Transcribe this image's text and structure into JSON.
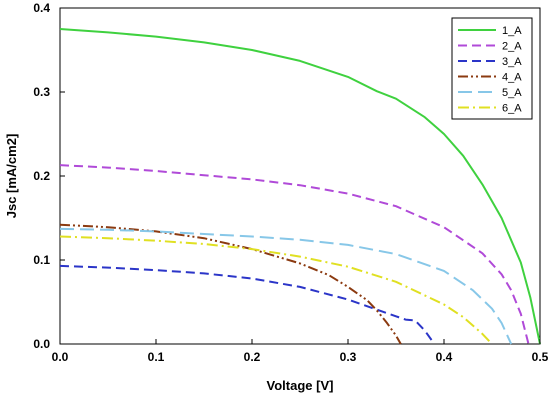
{
  "chart_data": {
    "type": "line",
    "title": "",
    "xlabel": "Voltage [V]",
    "ylabel": "Jsc [mA/cm2]",
    "xlim": [
      0.0,
      0.5
    ],
    "ylim": [
      0.0,
      0.4
    ],
    "xticks": [
      "0.0",
      "0.1",
      "0.2",
      "0.3",
      "0.4",
      "0.5"
    ],
    "yticks": [
      "0.0",
      "0.1",
      "0.2",
      "0.3",
      "0.4"
    ],
    "grid": false,
    "legend_position": "top-right",
    "series": [
      {
        "name": "1_A",
        "color": "#3fd13f",
        "dash": "solid",
        "x": [
          0.0,
          0.05,
          0.1,
          0.15,
          0.2,
          0.25,
          0.3,
          0.33,
          0.35,
          0.38,
          0.4,
          0.42,
          0.44,
          0.46,
          0.48,
          0.49,
          0.5
        ],
        "y": [
          0.375,
          0.371,
          0.366,
          0.359,
          0.35,
          0.337,
          0.318,
          0.301,
          0.292,
          0.27,
          0.25,
          0.224,
          0.19,
          0.15,
          0.097,
          0.055,
          0.0
        ]
      },
      {
        "name": "2_A",
        "color": "#b04ad8",
        "dash": "dashed",
        "x": [
          0.0,
          0.05,
          0.1,
          0.15,
          0.2,
          0.25,
          0.3,
          0.35,
          0.4,
          0.44,
          0.46,
          0.47,
          0.48,
          0.488
        ],
        "y": [
          0.213,
          0.21,
          0.206,
          0.201,
          0.196,
          0.189,
          0.179,
          0.164,
          0.139,
          0.108,
          0.083,
          0.064,
          0.036,
          0.0
        ]
      },
      {
        "name": "3_A",
        "color": "#2b35c8",
        "dash": "dashed",
        "x": [
          0.0,
          0.05,
          0.1,
          0.15,
          0.2,
          0.25,
          0.3,
          0.33,
          0.35,
          0.36,
          0.37,
          0.38,
          0.39
        ],
        "y": [
          0.093,
          0.091,
          0.088,
          0.084,
          0.078,
          0.068,
          0.053,
          0.041,
          0.033,
          0.029,
          0.028,
          0.016,
          0.0
        ]
      },
      {
        "name": "4_A",
        "color": "#8b3a10",
        "dash": "dashdotdot",
        "x": [
          0.0,
          0.05,
          0.1,
          0.15,
          0.2,
          0.25,
          0.28,
          0.3,
          0.32,
          0.33,
          0.34,
          0.35,
          0.355
        ],
        "y": [
          0.142,
          0.139,
          0.134,
          0.126,
          0.113,
          0.096,
          0.082,
          0.068,
          0.052,
          0.04,
          0.026,
          0.01,
          0.0
        ]
      },
      {
        "name": "5_A",
        "color": "#87c7e8",
        "dash": "longdash",
        "x": [
          0.0,
          0.05,
          0.1,
          0.15,
          0.2,
          0.25,
          0.3,
          0.35,
          0.4,
          0.43,
          0.45,
          0.46,
          0.47
        ],
        "y": [
          0.137,
          0.136,
          0.134,
          0.131,
          0.128,
          0.124,
          0.118,
          0.107,
          0.087,
          0.064,
          0.042,
          0.025,
          0.0
        ]
      },
      {
        "name": "6_A",
        "color": "#e0e022",
        "dash": "dashdot",
        "x": [
          0.0,
          0.05,
          0.1,
          0.15,
          0.2,
          0.25,
          0.3,
          0.35,
          0.4,
          0.42,
          0.44,
          0.45
        ],
        "y": [
          0.128,
          0.126,
          0.123,
          0.119,
          0.113,
          0.104,
          0.092,
          0.074,
          0.047,
          0.032,
          0.012,
          0.0
        ]
      }
    ]
  }
}
